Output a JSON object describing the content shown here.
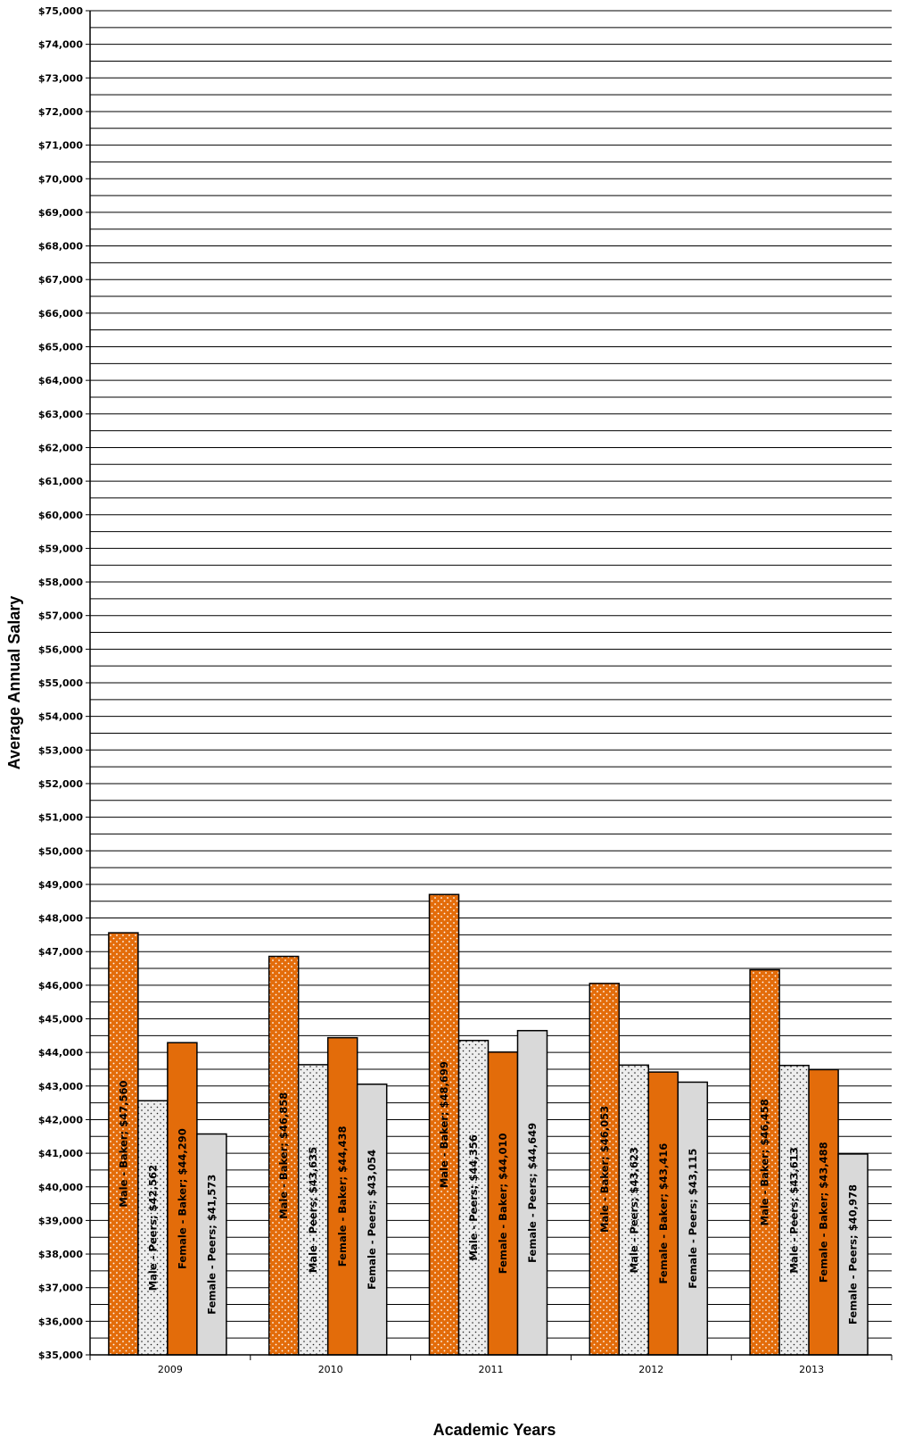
{
  "chart_data": {
    "type": "bar",
    "title": "",
    "xlabel": "Academic Years",
    "ylabel": "Average Annual Salary",
    "ylim": [
      35000,
      75000
    ],
    "ytick_step": 1000,
    "minor_step": 500,
    "grid": true,
    "legend": "none",
    "categories": [
      "2009",
      "2010",
      "2011",
      "2012",
      "2013"
    ],
    "series": [
      {
        "name": "Male - Baker",
        "color": "#E36C0A",
        "pattern": "dots",
        "values": [
          47560,
          46858,
          48699,
          46053,
          46458
        ],
        "labels": [
          "Male - Baker; $47,560",
          "Male - Baker; $46,858",
          "Male - Baker; $48,699",
          "Male - Baker; $46,053",
          "Male - Baker; $46,458"
        ]
      },
      {
        "name": "Male - Peers",
        "color": "#E6E6E6",
        "pattern": "dots",
        "values": [
          42562,
          43635,
          44356,
          43623,
          43613
        ],
        "labels": [
          "Male - Peers; $42,562",
          "Male - Peers; $43,635",
          "Male - Peers; $44,356",
          "Male - Peers; $43,623",
          "Male - Peers; $43,613"
        ]
      },
      {
        "name": "Female - Baker",
        "color": "#E36C0A",
        "pattern": "solid",
        "values": [
          44290,
          44438,
          44010,
          43416,
          43488
        ],
        "labels": [
          "Female - Baker; $44,290",
          "Female - Baker; $44,438",
          "Female - Baker; $44,010",
          "Female - Baker; $43,416",
          "Female - Baker; $43,488"
        ]
      },
      {
        "name": "Female - Peers",
        "color": "#D9D9D9",
        "pattern": "solid",
        "values": [
          41573,
          43054,
          44649,
          43115,
          40978
        ],
        "labels": [
          "Female - Peers; $41,573",
          "Female - Peers; $43,054",
          "Female - Peers; $44,649",
          "Female - Peers; $43,115",
          "Female - Peers; $40,978"
        ]
      }
    ]
  }
}
